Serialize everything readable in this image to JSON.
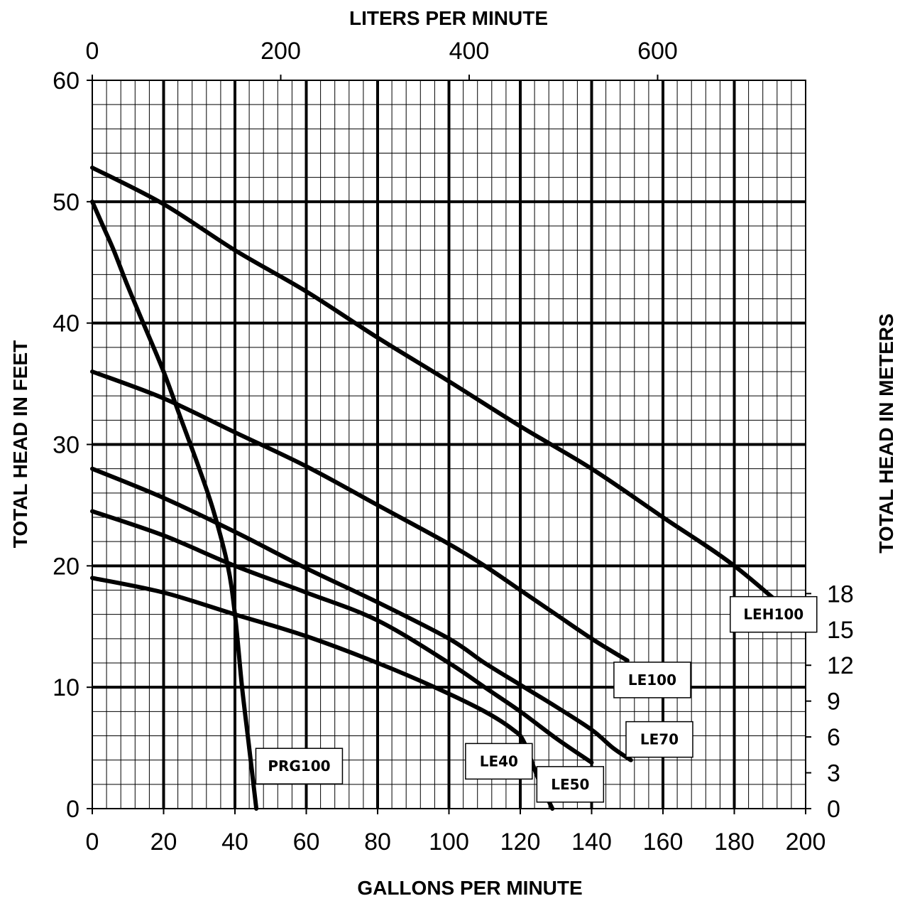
{
  "chart_data": {
    "type": "line",
    "xlabel": "GALLONS PER MINUTE",
    "ylabel": "TOTAL HEAD IN FEET",
    "x2label": "LITERS PER MINUTE",
    "y2label": "TOTAL HEAD IN METERS",
    "xlim": [
      0,
      200
    ],
    "ylim": [
      0,
      60
    ],
    "x_ticks": [
      0,
      20,
      40,
      60,
      80,
      100,
      120,
      140,
      160,
      180,
      200
    ],
    "y_ticks": [
      0,
      10,
      20,
      30,
      40,
      50,
      60
    ],
    "x2_ticks": [
      0,
      200,
      400,
      600
    ],
    "y2_ticks": [
      0,
      3,
      6,
      9,
      12,
      15,
      18
    ],
    "grid": true,
    "line_color": "#000000",
    "series": [
      {
        "name": "LEH100",
        "points": [
          [
            0,
            52.8
          ],
          [
            20,
            49.8
          ],
          [
            40,
            46
          ],
          [
            60,
            42.6
          ],
          [
            80,
            38.8
          ],
          [
            100,
            35.2
          ],
          [
            120,
            31.5
          ],
          [
            140,
            28
          ],
          [
            160,
            24
          ],
          [
            180,
            20
          ],
          [
            200,
            15
          ]
        ]
      },
      {
        "name": "LE100",
        "points": [
          [
            0,
            36
          ],
          [
            20,
            33.8
          ],
          [
            40,
            31
          ],
          [
            60,
            28.2
          ],
          [
            80,
            25
          ],
          [
            100,
            21.8
          ],
          [
            110,
            20
          ],
          [
            120,
            18
          ],
          [
            130,
            16
          ],
          [
            140,
            14
          ],
          [
            150,
            12.2
          ]
        ]
      },
      {
        "name": "LE70",
        "points": [
          [
            0,
            28
          ],
          [
            20,
            25.6
          ],
          [
            40,
            22.8
          ],
          [
            60,
            19.8
          ],
          [
            80,
            17
          ],
          [
            100,
            14
          ],
          [
            110,
            12
          ],
          [
            120,
            10.2
          ],
          [
            130,
            8.4
          ],
          [
            140,
            6.5
          ],
          [
            146,
            5
          ],
          [
            151,
            4
          ]
        ]
      },
      {
        "name": "LE50",
        "points": [
          [
            0,
            24.5
          ],
          [
            20,
            22.5
          ],
          [
            40,
            20
          ],
          [
            60,
            17.8
          ],
          [
            80,
            15.5
          ],
          [
            100,
            12
          ],
          [
            110,
            10
          ],
          [
            120,
            8
          ],
          [
            130,
            5.8
          ],
          [
            140,
            3.8
          ]
        ]
      },
      {
        "name": "LE40",
        "points": [
          [
            0,
            19
          ],
          [
            20,
            17.8
          ],
          [
            40,
            16
          ],
          [
            60,
            14.2
          ],
          [
            80,
            12
          ],
          [
            96,
            10
          ],
          [
            110,
            8
          ],
          [
            118,
            6.5
          ],
          [
            121,
            5.5
          ],
          [
            125,
            2.5
          ],
          [
            129,
            0
          ]
        ]
      },
      {
        "name": "PRG100",
        "points": [
          [
            0,
            50
          ],
          [
            3,
            48
          ],
          [
            6,
            46
          ],
          [
            10,
            43
          ],
          [
            15,
            39.5
          ],
          [
            20,
            36
          ],
          [
            25,
            32
          ],
          [
            30,
            28
          ],
          [
            34,
            24.5
          ],
          [
            38,
            20
          ],
          [
            40,
            16
          ],
          [
            42,
            10
          ],
          [
            44,
            5
          ],
          [
            46,
            0
          ]
        ]
      }
    ],
    "labels": [
      {
        "text": "LEH100",
        "x": 191,
        "y": 16
      },
      {
        "text": "LE100",
        "x": 157,
        "y": 10.6
      },
      {
        "text": "LE70",
        "x": 159,
        "y": 5.7
      },
      {
        "text": "LE40",
        "x": 114,
        "y": 3.9
      },
      {
        "text": "LE50",
        "x": 134,
        "y": 2
      },
      {
        "text": "PRG100",
        "x": 58,
        "y": 3.5
      }
    ]
  }
}
